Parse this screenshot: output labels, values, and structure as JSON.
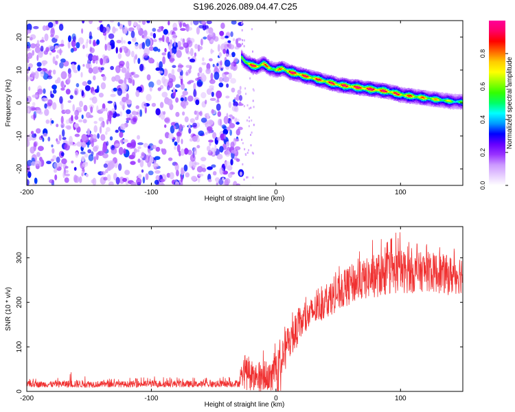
{
  "title": "S196.2026.089.04.47.C25",
  "chart_data": [
    {
      "type": "heatmap",
      "title": "S196.2026.089.04.47.C25",
      "xlabel": "Height of straight line (km)",
      "ylabel": "Frequency (Hz)",
      "xlim": [
        -200,
        150
      ],
      "ylim": [
        -25,
        25
      ],
      "xticks": [
        -200,
        -100,
        0,
        100
      ],
      "yticks": [
        -20,
        -10,
        0,
        10,
        20
      ],
      "grid": false,
      "colorbar": {
        "label": "Normalized spectral amplitude",
        "range": [
          0,
          1
        ],
        "ticks": [
          0.0,
          0.2,
          0.4,
          0.6,
          0.8
        ],
        "colormap": [
          "#ffffff",
          "#e6ccff",
          "#cc99ff",
          "#9933ff",
          "#6600ff",
          "#0000ff",
          "#0099ff",
          "#00ffff",
          "#00ff66",
          "#33ff00",
          "#99ff00",
          "#ffff00",
          "#ffcc00",
          "#ff6600",
          "#ff0000",
          "#ff0066",
          "#ff0099"
        ]
      },
      "noise_region": {
        "x_range": [
          -200,
          -28
        ],
        "y_range": [
          -25,
          25
        ],
        "level_range": [
          0.05,
          0.3
        ]
      },
      "signal_track": {
        "x": [
          -28,
          -25,
          -20,
          -15,
          -10,
          -5,
          0,
          5,
          10,
          15,
          20,
          30,
          40,
          50,
          60,
          70,
          80,
          90,
          100,
          110,
          120,
          130,
          140,
          150
        ],
        "frequency": [
          14,
          12.5,
          11.5,
          11,
          12,
          10.5,
          10,
          10.5,
          9.5,
          9,
          8.5,
          7.5,
          6.5,
          5.5,
          5,
          4.5,
          4,
          3.5,
          2.5,
          2,
          1.5,
          1,
          0.5,
          0.3
        ],
        "peak_level": [
          0.5,
          0.75,
          0.9,
          0.85,
          0.8,
          0.75,
          0.7,
          0.8,
          0.9,
          0.95,
          0.9,
          0.85,
          0.85,
          0.9,
          0.92,
          0.95,
          0.95,
          0.9,
          0.85,
          0.8,
          0.75,
          0.7,
          0.6,
          0.5
        ]
      }
    },
    {
      "type": "line",
      "xlabel": "Height of straight line (km)",
      "ylabel": "SNR (10 * v/v)",
      "xlim": [
        -200,
        150
      ],
      "ylim": [
        0,
        370
      ],
      "xticks": [
        -200,
        -100,
        0,
        100
      ],
      "yticks": [
        0,
        100,
        200,
        300
      ],
      "grid": false,
      "color": "#f03030",
      "series": [
        {
          "x": [
            -200,
            -180,
            -160,
            -140,
            -120,
            -100,
            -80,
            -60,
            -40,
            -30,
            -25,
            -20,
            -15,
            -10,
            -5,
            0,
            5,
            10,
            20,
            30,
            40,
            50,
            60,
            70,
            80,
            90,
            100,
            110,
            120,
            130,
            140,
            150
          ],
          "mean": [
            16,
            16,
            17,
            16,
            16,
            17,
            17,
            16,
            17,
            18,
            40,
            45,
            25,
            45,
            30,
            60,
            70,
            110,
            150,
            180,
            200,
            220,
            240,
            250,
            260,
            265,
            270,
            265,
            270,
            265,
            260,
            265
          ],
          "spread": [
            7,
            7,
            9,
            7,
            7,
            8,
            8,
            7,
            8,
            8,
            35,
            30,
            25,
            40,
            30,
            40,
            40,
            45,
            35,
            35,
            35,
            40,
            45,
            45,
            50,
            50,
            50,
            45,
            45,
            45,
            45,
            45
          ],
          "max": [
            30,
            28,
            48,
            32,
            30,
            34,
            34,
            30,
            34,
            35,
            85,
            75,
            60,
            100,
            80,
            120,
            140,
            170,
            200,
            230,
            250,
            280,
            300,
            330,
            345,
            340,
            370,
            345,
            335,
            340,
            320,
            330
          ]
        }
      ]
    }
  ]
}
